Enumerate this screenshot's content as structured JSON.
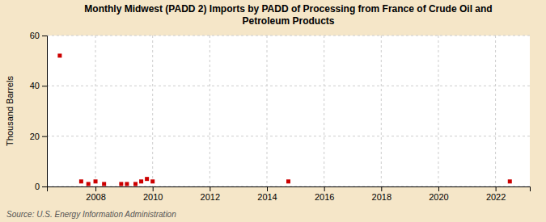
{
  "chart_data": {
    "type": "scatter",
    "title": "Monthly Midwest (PADD 2) Imports by PADD of Processing from France of Crude Oil and\nPetroleum Products",
    "y_label": "Thousand Barrels",
    "source": "Source: U.S. Energy Information Administration",
    "x": [
      2006.75,
      2007.5,
      2007.75,
      2008.0,
      2008.3,
      2008.9,
      2009.1,
      2009.4,
      2009.6,
      2009.8,
      2010.0,
      2014.75,
      2022.5
    ],
    "values": [
      52,
      2,
      1,
      2,
      1,
      1,
      1,
      1,
      2,
      3,
      2,
      2,
      2
    ],
    "color": "#cc0000",
    "marker": "square",
    "xlim": [
      2006.3,
      2023.2
    ],
    "xticks": [
      2008,
      2010,
      2012,
      2014,
      2016,
      2018,
      2020,
      2022
    ],
    "ylim": [
      0,
      60
    ],
    "yticks": [
      0,
      20,
      40,
      60
    ],
    "grid": true
  }
}
